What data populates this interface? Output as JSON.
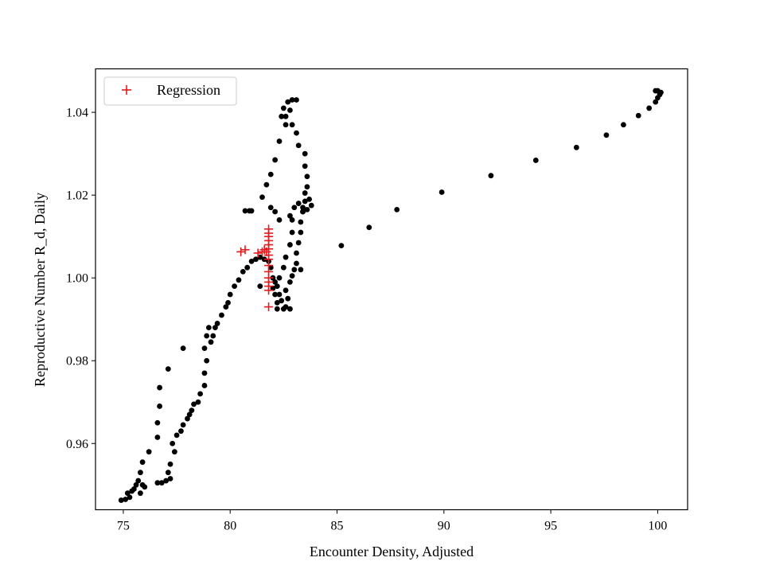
{
  "chart_data": {
    "type": "scatter",
    "xlabel": "Encounter Density, Adjusted",
    "ylabel": "Reproductive Number R_d, Daily",
    "xlim": [
      73.7,
      101.4
    ],
    "ylim": [
      0.944,
      1.0505
    ],
    "xticks": [
      75,
      80,
      85,
      90,
      95,
      100
    ],
    "yticks": [
      0.96,
      0.98,
      1.0,
      1.02,
      1.04
    ],
    "xtick_labels": [
      "75",
      "80",
      "85",
      "90",
      "95",
      "100"
    ],
    "ytick_labels": [
      "0.96",
      "0.98",
      "1.00",
      "1.02",
      "1.04"
    ],
    "grid": false,
    "legend": {
      "placement": "upper-left",
      "entries": [
        "Regression"
      ]
    },
    "series": [
      {
        "marker": "dot",
        "color": "#000000",
        "points": [
          [
            74.9,
            0.9463
          ],
          [
            75.1,
            0.9465
          ],
          [
            75.3,
            0.947
          ],
          [
            75.2,
            0.948
          ],
          [
            75.4,
            0.9485
          ],
          [
            75.5,
            0.949
          ],
          [
            75.6,
            0.95
          ],
          [
            75.8,
            0.948
          ],
          [
            75.9,
            0.95
          ],
          [
            76.0,
            0.9495
          ],
          [
            75.7,
            0.951
          ],
          [
            75.8,
            0.953
          ],
          [
            75.9,
            0.9555
          ],
          [
            76.2,
            0.958
          ],
          [
            76.6,
            0.9615
          ],
          [
            76.6,
            0.965
          ],
          [
            76.7,
            0.969
          ],
          [
            76.7,
            0.9735
          ],
          [
            77.1,
            0.978
          ],
          [
            77.8,
            0.983
          ],
          [
            76.6,
            0.9505
          ],
          [
            76.8,
            0.9505
          ],
          [
            77.0,
            0.951
          ],
          [
            77.2,
            0.9515
          ],
          [
            77.1,
            0.953
          ],
          [
            77.2,
            0.955
          ],
          [
            77.4,
            0.958
          ],
          [
            77.3,
            0.96
          ],
          [
            77.5,
            0.962
          ],
          [
            77.7,
            0.963
          ],
          [
            77.8,
            0.9645
          ],
          [
            78.0,
            0.966
          ],
          [
            78.1,
            0.967
          ],
          [
            78.2,
            0.968
          ],
          [
            78.3,
            0.9695
          ],
          [
            78.5,
            0.97
          ],
          [
            78.6,
            0.972
          ],
          [
            78.8,
            0.974
          ],
          [
            78.8,
            0.977
          ],
          [
            78.9,
            0.98
          ],
          [
            78.8,
            0.983
          ],
          [
            78.9,
            0.986
          ],
          [
            79.0,
            0.988
          ],
          [
            79.2,
            0.986
          ],
          [
            79.3,
            0.988
          ],
          [
            79.1,
            0.9845
          ],
          [
            79.4,
            0.989
          ],
          [
            79.6,
            0.991
          ],
          [
            79.8,
            0.993
          ],
          [
            79.9,
            0.994
          ],
          [
            80.0,
            0.996
          ],
          [
            80.2,
            0.998
          ],
          [
            80.4,
            0.9995
          ],
          [
            80.6,
            1.0015
          ],
          [
            80.8,
            1.0025
          ],
          [
            81.0,
            1.004
          ],
          [
            81.2,
            1.0045
          ],
          [
            81.4,
            1.005
          ],
          [
            81.6,
            1.0045
          ],
          [
            81.8,
            1.004
          ],
          [
            81.9,
            1.0025
          ],
          [
            82.0,
            1.0
          ],
          [
            82.1,
            0.999
          ],
          [
            81.4,
            0.998
          ],
          [
            82.0,
            0.9975
          ],
          [
            82.1,
            0.996
          ],
          [
            82.2,
            0.994
          ],
          [
            82.2,
            0.9925
          ],
          [
            82.5,
            0.9925
          ],
          [
            82.6,
            0.993
          ],
          [
            82.8,
            0.9925
          ],
          [
            82.7,
            0.995
          ],
          [
            82.6,
            0.997
          ],
          [
            82.8,
            0.999
          ],
          [
            82.9,
            1.0005
          ],
          [
            83.0,
            1.002
          ],
          [
            83.1,
            1.0035
          ],
          [
            83.3,
            1.002
          ],
          [
            83.1,
            1.006
          ],
          [
            83.2,
            1.0085
          ],
          [
            83.3,
            1.011
          ],
          [
            83.3,
            1.0135
          ],
          [
            83.4,
            1.016
          ],
          [
            83.5,
            1.0185
          ],
          [
            83.5,
            1.0205
          ],
          [
            83.6,
            1.022
          ],
          [
            83.6,
            1.0245
          ],
          [
            83.5,
            1.027
          ],
          [
            83.5,
            1.03
          ],
          [
            83.2,
            1.032
          ],
          [
            83.1,
            1.035
          ],
          [
            82.9,
            1.037
          ],
          [
            82.6,
            1.039
          ],
          [
            82.4,
            1.039
          ],
          [
            82.5,
            1.041
          ],
          [
            82.7,
            1.0425
          ],
          [
            82.9,
            1.043
          ],
          [
            83.1,
            1.043
          ],
          [
            82.8,
            1.0405
          ],
          [
            82.6,
            1.037
          ],
          [
            82.3,
            1.033
          ],
          [
            82.1,
            1.0285
          ],
          [
            81.9,
            1.025
          ],
          [
            81.7,
            1.0225
          ],
          [
            81.5,
            1.0195
          ],
          [
            81.9,
            1.017
          ],
          [
            82.1,
            1.016
          ],
          [
            82.3,
            1.014
          ],
          [
            80.7,
            1.0162
          ],
          [
            80.9,
            1.0162
          ],
          [
            81.0,
            1.0162
          ],
          [
            82.8,
            1.015
          ],
          [
            83.0,
            1.017
          ],
          [
            83.2,
            1.018
          ],
          [
            83.4,
            1.017
          ],
          [
            83.6,
            1.0165
          ],
          [
            83.8,
            1.0175
          ],
          [
            83.7,
            1.019
          ],
          [
            83.4,
            1.016
          ],
          [
            82.9,
            1.014
          ],
          [
            82.9,
            1.011
          ],
          [
            82.8,
            1.008
          ],
          [
            82.6,
            1.005
          ],
          [
            82.5,
            1.0025
          ],
          [
            82.3,
            1.0
          ],
          [
            82.2,
            0.998
          ],
          [
            82.3,
            0.996
          ],
          [
            82.4,
            0.9945
          ],
          [
            85.2,
            1.0078
          ],
          [
            86.5,
            1.0122
          ],
          [
            87.8,
            1.0165
          ],
          [
            89.9,
            1.0207
          ],
          [
            92.2,
            1.0247
          ],
          [
            94.3,
            1.0284
          ],
          [
            96.2,
            1.0315
          ],
          [
            97.6,
            1.0345
          ],
          [
            98.4,
            1.037
          ],
          [
            99.1,
            1.0392
          ],
          [
            99.6,
            1.041
          ],
          [
            99.9,
            1.0425
          ],
          [
            100.0,
            1.0435
          ],
          [
            100.1,
            1.0443
          ],
          [
            100.15,
            1.0448
          ],
          [
            100.0,
            1.0452
          ],
          [
            99.9,
            1.0452
          ]
        ]
      },
      {
        "name": "Regression",
        "marker": "plus",
        "color": "#e41a1c",
        "points": [
          [
            80.5,
            1.0063
          ],
          [
            80.7,
            1.0068
          ],
          [
            81.3,
            1.006
          ],
          [
            81.5,
            1.0063
          ],
          [
            81.6,
            1.0068
          ],
          [
            81.7,
            1.0063
          ],
          [
            81.8,
            1.0118
          ],
          [
            81.8,
            1.0108
          ],
          [
            81.8,
            1.01
          ],
          [
            81.8,
            1.009
          ],
          [
            81.8,
            1.008
          ],
          [
            81.8,
            1.007
          ],
          [
            81.8,
            1.0055
          ],
          [
            81.8,
            1.0045
          ],
          [
            81.8,
            1.003
          ],
          [
            81.8,
            1.0015
          ],
          [
            81.8,
            1.0
          ],
          [
            81.8,
            0.999
          ],
          [
            81.8,
            0.998
          ],
          [
            81.8,
            0.997
          ],
          [
            81.8,
            0.993
          ]
        ]
      }
    ]
  }
}
